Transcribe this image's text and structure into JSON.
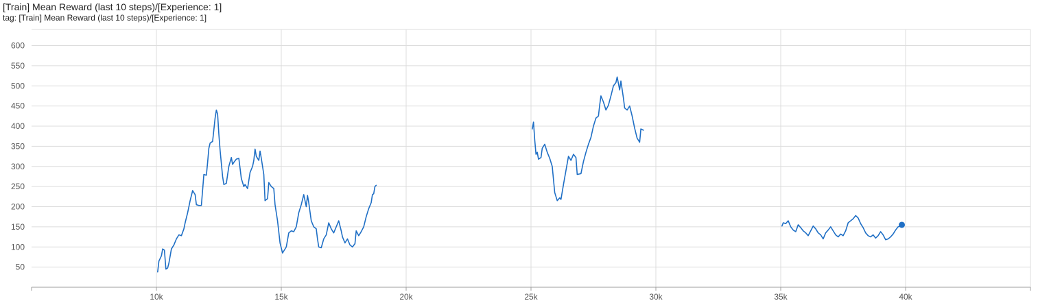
{
  "header": {
    "title": "[Train] Mean Reward (last 10 steps)/[Experience: 1]",
    "subtitle": "tag: [Train] Mean Reward (last 10 steps)/[Experience: 1]"
  },
  "colors": {
    "series": "#1f6fc5",
    "grid": "#dcdcdc",
    "text": "#555555"
  },
  "chart_data": {
    "type": "line",
    "title": "[Train] Mean Reward (last 10 steps)/[Experience: 1]",
    "xlabel": "",
    "ylabel": "",
    "xlim": [
      5000,
      45000
    ],
    "ylim": [
      0,
      640
    ],
    "grid": true,
    "legend": "none",
    "x_ticks": [
      10000,
      15000,
      20000,
      25000,
      30000,
      35000,
      40000
    ],
    "x_tick_labels": [
      "10k",
      "15k",
      "20k",
      "25k",
      "30k",
      "35k",
      "40k"
    ],
    "y_ticks": [
      50,
      100,
      150,
      200,
      250,
      300,
      350,
      400,
      450,
      500,
      550,
      600
    ],
    "y_tick_labels": [
      "50",
      "100",
      "150",
      "200",
      "250",
      "300",
      "350",
      "400",
      "450",
      "500",
      "550",
      "600"
    ],
    "series": [
      {
        "segments": [
          [
            [
              10050,
              38
            ],
            [
              10100,
              65
            ],
            [
              10200,
              78
            ],
            [
              10250,
              95
            ],
            [
              10320,
              92
            ],
            [
              10380,
              45
            ],
            [
              10450,
              48
            ],
            [
              10500,
              60
            ],
            [
              10600,
              95
            ],
            [
              10700,
              105
            ],
            [
              10800,
              120
            ],
            [
              10900,
              130
            ],
            [
              11000,
              128
            ],
            [
              11100,
              145
            ],
            [
              11150,
              160
            ],
            [
              11250,
              185
            ],
            [
              11350,
              215
            ],
            [
              11450,
              240
            ],
            [
              11550,
              230
            ],
            [
              11600,
              205
            ],
            [
              11700,
              203
            ],
            [
              11800,
              203
            ],
            [
              11900,
              280
            ],
            [
              12000,
              278
            ],
            [
              12050,
              310
            ],
            [
              12100,
              345
            ],
            [
              12150,
              358
            ],
            [
              12250,
              362
            ],
            [
              12350,
              420
            ],
            [
              12400,
              440
            ],
            [
              12450,
              430
            ],
            [
              12500,
              380
            ],
            [
              12550,
              340
            ],
            [
              12650,
              275
            ],
            [
              12700,
              255
            ],
            [
              12800,
              258
            ],
            [
              12900,
              300
            ],
            [
              13000,
              322
            ],
            [
              13050,
              305
            ],
            [
              13100,
              310
            ],
            [
              13200,
              318
            ],
            [
              13300,
              320
            ],
            [
              13400,
              270
            ],
            [
              13500,
              250
            ],
            [
              13550,
              255
            ],
            [
              13650,
              245
            ],
            [
              13750,
              285
            ],
            [
              13850,
              300
            ],
            [
              13900,
              315
            ],
            [
              13950,
              343
            ],
            [
              14000,
              325
            ],
            [
              14100,
              315
            ],
            [
              14150,
              338
            ],
            [
              14200,
              320
            ],
            [
              14300,
              280
            ],
            [
              14350,
              215
            ],
            [
              14450,
              220
            ],
            [
              14500,
              260
            ],
            [
              14600,
              250
            ],
            [
              14700,
              245
            ],
            [
              14750,
              205
            ],
            [
              14850,
              165
            ],
            [
              14950,
              110
            ],
            [
              15050,
              85
            ],
            [
              15100,
              90
            ],
            [
              15200,
              100
            ],
            [
              15300,
              135
            ],
            [
              15400,
              140
            ],
            [
              15500,
              138
            ],
            [
              15600,
              150
            ],
            [
              15700,
              185
            ],
            [
              15800,
              205
            ],
            [
              15900,
              230
            ],
            [
              16000,
              200
            ],
            [
              16050,
              228
            ],
            [
              16100,
              210
            ],
            [
              16200,
              165
            ],
            [
              16300,
              150
            ],
            [
              16400,
              145
            ],
            [
              16450,
              120
            ],
            [
              16500,
              100
            ],
            [
              16600,
              98
            ],
            [
              16700,
              120
            ],
            [
              16800,
              130
            ],
            [
              16900,
              160
            ],
            [
              17000,
              145
            ],
            [
              17100,
              135
            ],
            [
              17200,
              150
            ],
            [
              17300,
              165
            ],
            [
              17400,
              140
            ],
            [
              17450,
              125
            ],
            [
              17550,
              110
            ],
            [
              17650,
              120
            ],
            [
              17750,
              105
            ],
            [
              17850,
              100
            ],
            [
              17950,
              108
            ],
            [
              18000,
              140
            ],
            [
              18100,
              128
            ],
            [
              18200,
              138
            ],
            [
              18300,
              150
            ],
            [
              18400,
              175
            ],
            [
              18500,
              195
            ],
            [
              18600,
              210
            ],
            [
              18650,
              230
            ],
            [
              18700,
              232
            ],
            [
              18750,
              250
            ],
            [
              18800,
              253
            ]
          ],
          [
            [
              25050,
              393
            ],
            [
              25100,
              410
            ],
            [
              25150,
              365
            ],
            [
              25200,
              330
            ],
            [
              25250,
              335
            ],
            [
              25300,
              318
            ],
            [
              25400,
              322
            ],
            [
              25450,
              345
            ],
            [
              25550,
              355
            ],
            [
              25650,
              335
            ],
            [
              25750,
              320
            ],
            [
              25850,
              300
            ],
            [
              25950,
              235
            ],
            [
              26050,
              215
            ],
            [
              26150,
              222
            ],
            [
              26200,
              218
            ],
            [
              26300,
              255
            ],
            [
              26400,
              290
            ],
            [
              26500,
              325
            ],
            [
              26600,
              315
            ],
            [
              26700,
              330
            ],
            [
              26800,
              322
            ],
            [
              26850,
              280
            ],
            [
              27000,
              282
            ],
            [
              27100,
              312
            ],
            [
              27200,
              335
            ],
            [
              27300,
              355
            ],
            [
              27400,
              372
            ],
            [
              27500,
              400
            ],
            [
              27600,
              420
            ],
            [
              27700,
              425
            ],
            [
              27750,
              452
            ],
            [
              27800,
              475
            ],
            [
              27900,
              460
            ],
            [
              28000,
              440
            ],
            [
              28100,
              452
            ],
            [
              28200,
              475
            ],
            [
              28300,
              500
            ],
            [
              28400,
              508
            ],
            [
              28450,
              522
            ],
            [
              28550,
              490
            ],
            [
              28600,
              512
            ],
            [
              28700,
              470
            ],
            [
              28750,
              445
            ],
            [
              28850,
              440
            ],
            [
              28950,
              450
            ],
            [
              29050,
              425
            ],
            [
              29150,
              395
            ],
            [
              29250,
              370
            ],
            [
              29350,
              360
            ],
            [
              29400,
              393
            ],
            [
              29500,
              390
            ]
          ],
          [
            [
              35050,
              152
            ],
            [
              35100,
              160
            ],
            [
              35200,
              158
            ],
            [
              35300,
              165
            ],
            [
              35400,
              150
            ],
            [
              35500,
              142
            ],
            [
              35600,
              138
            ],
            [
              35700,
              155
            ],
            [
              35800,
              148
            ],
            [
              35900,
              140
            ],
            [
              36000,
              135
            ],
            [
              36100,
              128
            ],
            [
              36200,
              140
            ],
            [
              36300,
              152
            ],
            [
              36400,
              145
            ],
            [
              36500,
              135
            ],
            [
              36600,
              130
            ],
            [
              36700,
              120
            ],
            [
              36800,
              135
            ],
            [
              36900,
              142
            ],
            [
              37000,
              150
            ],
            [
              37100,
              140
            ],
            [
              37200,
              130
            ],
            [
              37300,
              125
            ],
            [
              37400,
              132
            ],
            [
              37500,
              128
            ],
            [
              37600,
              140
            ],
            [
              37700,
              160
            ],
            [
              37800,
              165
            ],
            [
              37900,
              170
            ],
            [
              38000,
              178
            ],
            [
              38100,
              172
            ],
            [
              38200,
              158
            ],
            [
              38300,
              148
            ],
            [
              38400,
              135
            ],
            [
              38500,
              128
            ],
            [
              38600,
              125
            ],
            [
              38700,
              130
            ],
            [
              38800,
              122
            ],
            [
              38900,
              128
            ],
            [
              39000,
              138
            ],
            [
              39100,
              130
            ],
            [
              39200,
              118
            ],
            [
              39300,
              120
            ],
            [
              39400,
              125
            ],
            [
              39500,
              132
            ],
            [
              39600,
              142
            ],
            [
              39700,
              150
            ],
            [
              39800,
              152
            ],
            [
              39850,
              155
            ]
          ]
        ]
      }
    ]
  }
}
